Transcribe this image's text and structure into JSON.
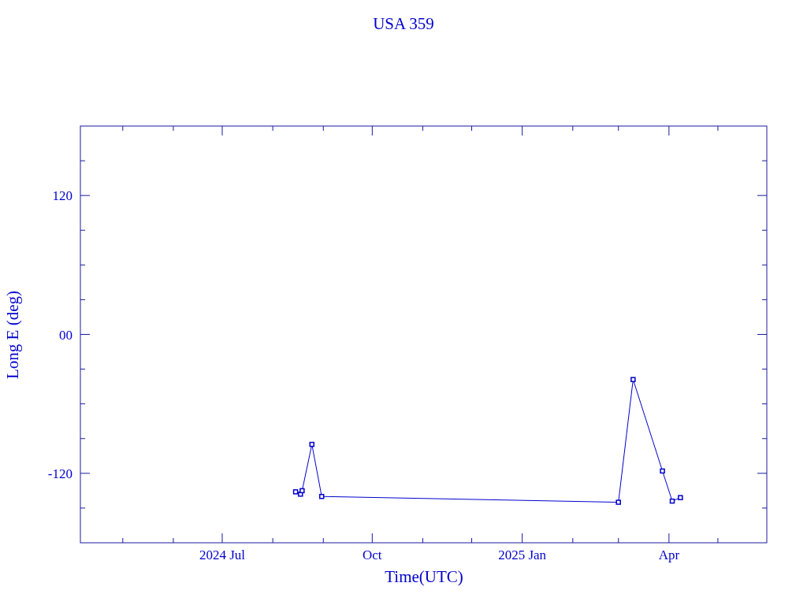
{
  "chart_data": {
    "type": "line",
    "title": "USA 359",
    "xlabel": "Time(UTC)",
    "ylabel": "Long E (deg)",
    "x": [
      "2024-08-15",
      "2024-08-18",
      "2024-08-19",
      "2024-08-25",
      "2024-08-31",
      "2025-03-01",
      "2025-03-10",
      "2025-03-28",
      "2025-04-03",
      "2025-04-08"
    ],
    "series": [
      {
        "color": "#0000cc",
        "values": [
          -136,
          -138,
          -135,
          -95,
          -140,
          -145,
          -39,
          -118,
          -144,
          -141
        ]
      }
    ],
    "marker": "square",
    "line_style": "solid",
    "grid": false,
    "xlim": [
      "2024-04-05",
      "2025-05-31"
    ],
    "xticks": [
      {
        "value": "2024-05-01",
        "label": null
      },
      {
        "value": "2024-06-01",
        "label": null
      },
      {
        "value": "2024-07-01",
        "label": "2024 Jul"
      },
      {
        "value": "2024-08-01",
        "label": null
      },
      {
        "value": "2024-09-01",
        "label": null
      },
      {
        "value": "2024-10-01",
        "label": "Oct"
      },
      {
        "value": "2024-11-01",
        "label": null
      },
      {
        "value": "2024-12-01",
        "label": null
      },
      {
        "value": "2025-01-01",
        "label": "2025 Jan"
      },
      {
        "value": "2025-02-01",
        "label": null
      },
      {
        "value": "2025-03-01",
        "label": null
      },
      {
        "value": "2025-04-01",
        "label": "Apr"
      },
      {
        "value": "2025-05-01",
        "label": null
      }
    ],
    "ylim": [
      -180,
      180
    ],
    "yticks": [
      {
        "value": -150,
        "label": null
      },
      -120,
      {
        "value": -90,
        "label": null
      },
      {
        "value": -60,
        "label": null
      },
      {
        "value": -30,
        "label": null
      },
      {
        "value": 0,
        "label": "00"
      },
      {
        "value": 30,
        "label": null
      },
      {
        "value": 60,
        "label": null
      },
      {
        "value": 90,
        "label": null
      },
      120,
      {
        "value": 150,
        "label": null
      }
    ]
  }
}
